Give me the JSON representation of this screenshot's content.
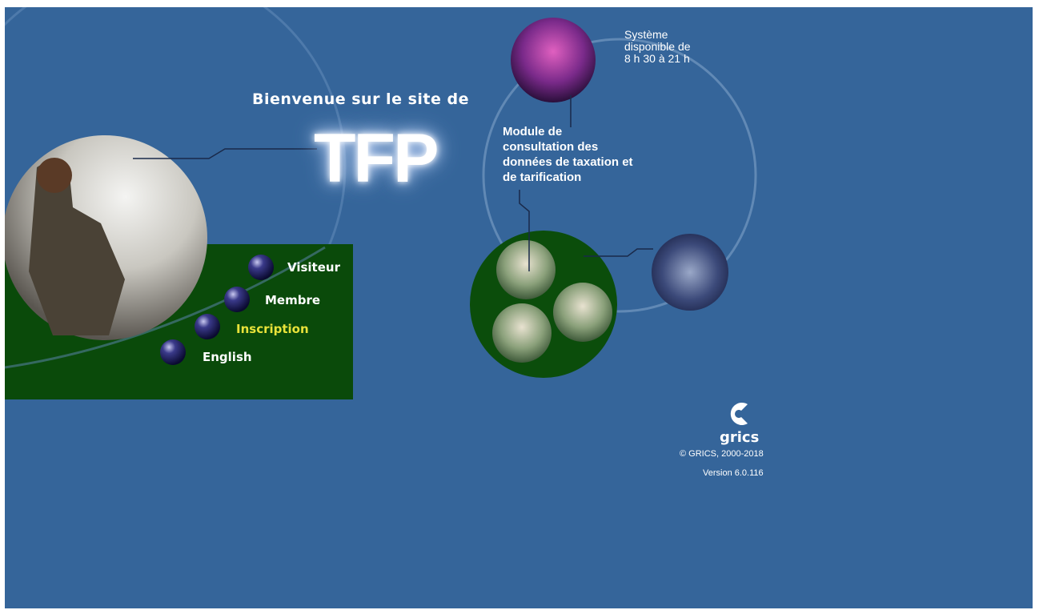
{
  "header": {
    "welcome": "Bienvenue sur le site de",
    "logo": "TFP"
  },
  "availability": {
    "lines": [
      "Système",
      "disponible de",
      "8 h 30 à 21 h"
    ]
  },
  "module": {
    "lines": [
      "Module de",
      "consultation des",
      "données de taxation et",
      "de tarification"
    ]
  },
  "menu": {
    "items": [
      "Visiteur",
      "Membre",
      "Inscription",
      "English"
    ]
  },
  "footer": {
    "brand": "grics",
    "copyright": "© GRICS, 2000-2018",
    "version": "Version 6.0.116"
  }
}
